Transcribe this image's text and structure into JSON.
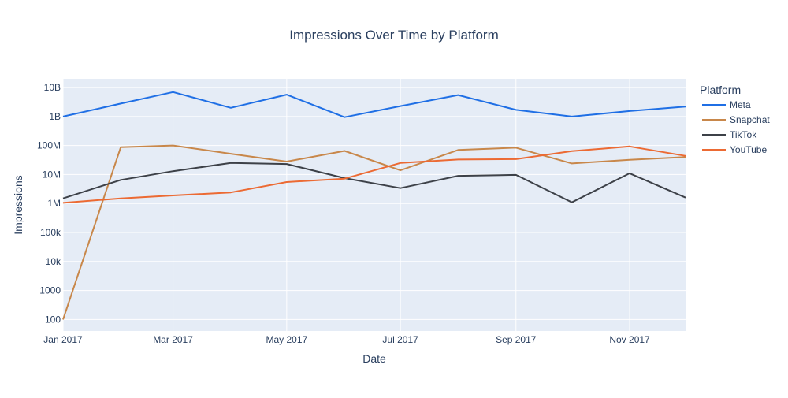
{
  "chart_data": {
    "type": "line",
    "title": "Impressions Over Time by Platform",
    "xlabel": "Date",
    "ylabel": "Impressions",
    "yscale": "log",
    "xlim": [
      "2017-01-01",
      "2017-12-01"
    ],
    "ylim": [
      40,
      20000000000
    ],
    "grid": true,
    "legend_title": "Platform",
    "legend_position": "right",
    "x_ticks": [
      {
        "date": "2017-01-01",
        "label": "Jan 2017"
      },
      {
        "date": "2017-03-01",
        "label": "Mar 2017"
      },
      {
        "date": "2017-05-01",
        "label": "May 2017"
      },
      {
        "date": "2017-07-01",
        "label": "Jul 2017"
      },
      {
        "date": "2017-09-01",
        "label": "Sep 2017"
      },
      {
        "date": "2017-11-01",
        "label": "Nov 2017"
      }
    ],
    "y_ticks": [
      {
        "value": 100,
        "label": "100"
      },
      {
        "value": 1000,
        "label": "1000"
      },
      {
        "value": 10000,
        "label": "10k"
      },
      {
        "value": 100000,
        "label": "100k"
      },
      {
        "value": 1000000,
        "label": "1M"
      },
      {
        "value": 10000000,
        "label": "10M"
      },
      {
        "value": 100000000,
        "label": "100M"
      },
      {
        "value": 1000000000,
        "label": "1B"
      },
      {
        "value": 10000000000,
        "label": "10B"
      }
    ],
    "x": [
      "2017-01-01",
      "2017-02-01",
      "2017-03-01",
      "2017-04-01",
      "2017-05-01",
      "2017-06-01",
      "2017-07-01",
      "2017-08-01",
      "2017-09-01",
      "2017-10-01",
      "2017-11-01",
      "2017-12-01"
    ],
    "series": [
      {
        "name": "Meta",
        "color": "#1f6fe5",
        "values": [
          1000000000,
          2800000000,
          7000000000,
          2000000000,
          5700000000,
          950000000,
          2300000000,
          5500000000,
          1700000000,
          1000000000,
          1550000000,
          2200000000
        ]
      },
      {
        "name": "Snapchat",
        "color": "#c8874a",
        "values": [
          100,
          88000000,
          100000000,
          52000000,
          28000000,
          65000000,
          14000000,
          70000000,
          84000000,
          24000000,
          32000000,
          40000000
        ]
      },
      {
        "name": "TikTok",
        "color": "#3d4148",
        "values": [
          1500000,
          6500000,
          13000000,
          25000000,
          23000000,
          7500000,
          3400000,
          9000000,
          9700000,
          1100000,
          11000000,
          1600000
        ]
      },
      {
        "name": "YouTube",
        "color": "#ec6a33",
        "values": [
          1050000,
          1500000,
          1900000,
          2400000,
          5500000,
          7200000,
          25000000,
          33000000,
          34000000,
          64000000,
          93000000,
          44000000
        ]
      }
    ]
  }
}
